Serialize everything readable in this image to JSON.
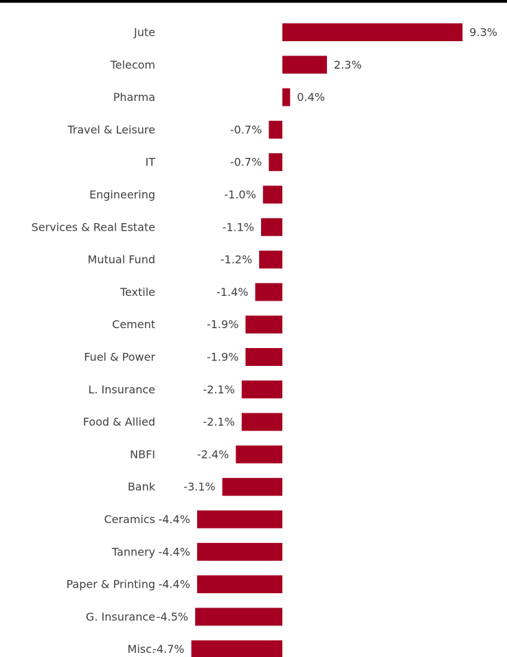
{
  "chart_data": {
    "type": "bar",
    "orientation": "horizontal",
    "title": "",
    "xlabel": "",
    "ylabel": "",
    "grid": false,
    "legend": "none",
    "bar_color": "#A50021",
    "xlim": [
      -4.7,
      9.3
    ],
    "categories": [
      "Jute",
      "Telecom",
      "Pharma",
      "Travel & Leisure",
      "IT",
      "Engineering",
      "Services & Real Estate",
      "Mutual Fund",
      "Textile",
      "Cement",
      "Fuel & Power",
      "L. Insurance",
      "Food & Allied",
      "NBFI",
      "Bank",
      "Ceramics",
      "Tannery",
      "Paper & Printing",
      "G. Insurance",
      "Misc."
    ],
    "values": [
      9.3,
      2.3,
      0.4,
      -0.7,
      -0.7,
      -1.0,
      -1.1,
      -1.2,
      -1.4,
      -1.9,
      -1.9,
      -2.1,
      -2.1,
      -2.4,
      -3.1,
      -4.4,
      -4.4,
      -4.4,
      -4.5,
      -4.7
    ],
    "labels": [
      "9.3%",
      "2.3%",
      "0.4%",
      "-0.7%",
      "-0.7%",
      "-1.0%",
      "-1.1%",
      "-1.2%",
      "-1.4%",
      "-1.9%",
      "-1.9%",
      "-2.1%",
      "-2.1%",
      "-2.4%",
      "-3.1%",
      "-4.4%",
      "-4.4%",
      "-4.4%",
      "-4.5%",
      "-4.7%"
    ]
  }
}
